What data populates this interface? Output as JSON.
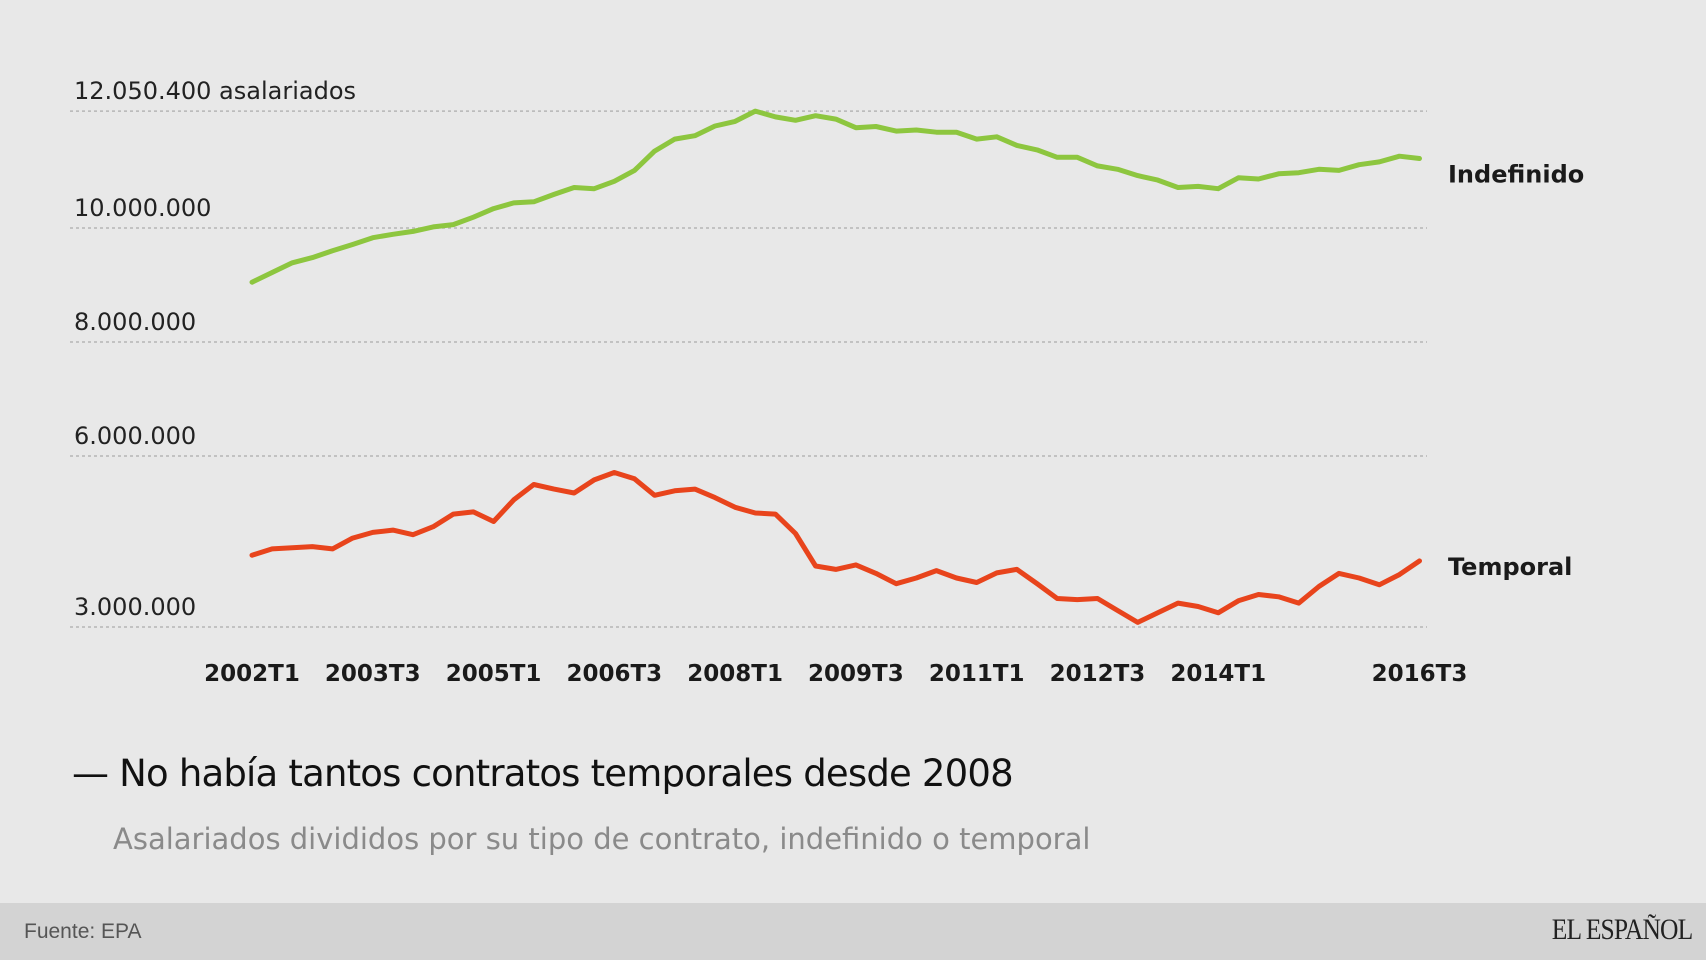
{
  "chart_data": {
    "type": "line",
    "title": "No había tantos contratos temporales desde 2008",
    "subtitle": "Asalariados divididos por su tipo de contrato, indefinido o temporal",
    "xlabel": "",
    "ylabel": "asalariados",
    "ylim": [
      3000000,
      12050400
    ],
    "grid": true,
    "y_ticks": [
      {
        "value": 12050400,
        "label": "12.050.400 asalariados"
      },
      {
        "value": 10000000,
        "label": "10.000.000"
      },
      {
        "value": 8000000,
        "label": "8.000.000"
      },
      {
        "value": 6000000,
        "label": "6.000.000"
      },
      {
        "value": 3000000,
        "label": "3.000.000"
      }
    ],
    "x_ticks": [
      {
        "index": 0,
        "label": "2002T1"
      },
      {
        "index": 6,
        "label": "2003T3"
      },
      {
        "index": 12,
        "label": "2005T1"
      },
      {
        "index": 18,
        "label": "2006T3"
      },
      {
        "index": 24,
        "label": "2008T1"
      },
      {
        "index": 30,
        "label": "2009T3"
      },
      {
        "index": 36,
        "label": "2011T1"
      },
      {
        "index": 42,
        "label": "2012T3"
      },
      {
        "index": 48,
        "label": "2014T1"
      },
      {
        "index": 58,
        "label": "2016T3"
      }
    ],
    "x_start": "2002T1",
    "x_end": "2016T3",
    "series": [
      {
        "name": "Indefinido",
        "color": "#8dc63f",
        "values": [
          9050000,
          9220000,
          9390000,
          9480000,
          9600000,
          9710000,
          9830000,
          9890000,
          9940000,
          10020000,
          10060000,
          10190000,
          10340000,
          10440000,
          10460000,
          10590000,
          10710000,
          10690000,
          10820000,
          11010000,
          11350000,
          11560000,
          11620000,
          11790000,
          11870000,
          12050400,
          11950000,
          11890000,
          11970000,
          11910000,
          11760000,
          11780000,
          11700000,
          11720000,
          11680000,
          11680000,
          11560000,
          11600000,
          11450000,
          11370000,
          11240000,
          11240000,
          11090000,
          11030000,
          10920000,
          10840000,
          10710000,
          10730000,
          10690000,
          10880000,
          10860000,
          10950000,
          10970000,
          11030000,
          11010000,
          11110000,
          11160000,
          11260000,
          11220000
        ]
      },
      {
        "name": "Temporal",
        "color": "#e8441c",
        "values": [
          4260000,
          4370000,
          4390000,
          4410000,
          4370000,
          4560000,
          4660000,
          4700000,
          4620000,
          4760000,
          4980000,
          5020000,
          4850000,
          5230000,
          5500000,
          5420000,
          5350000,
          5580000,
          5710000,
          5600000,
          5310000,
          5390000,
          5420000,
          5270000,
          5100000,
          5000000,
          4980000,
          4640000,
          4070000,
          4010000,
          4090000,
          3940000,
          3760000,
          3860000,
          3990000,
          3860000,
          3780000,
          3950000,
          4010000,
          3760000,
          3500000,
          3480000,
          3500000,
          3290000,
          3080000,
          3250000,
          3420000,
          3360000,
          3250000,
          3460000,
          3570000,
          3530000,
          3420000,
          3710000,
          3940000,
          3860000,
          3740000,
          3920000,
          4160000
        ]
      }
    ]
  },
  "footer": {
    "source": "Fuente: EPA",
    "logo": "EL ESPAÑOL"
  }
}
